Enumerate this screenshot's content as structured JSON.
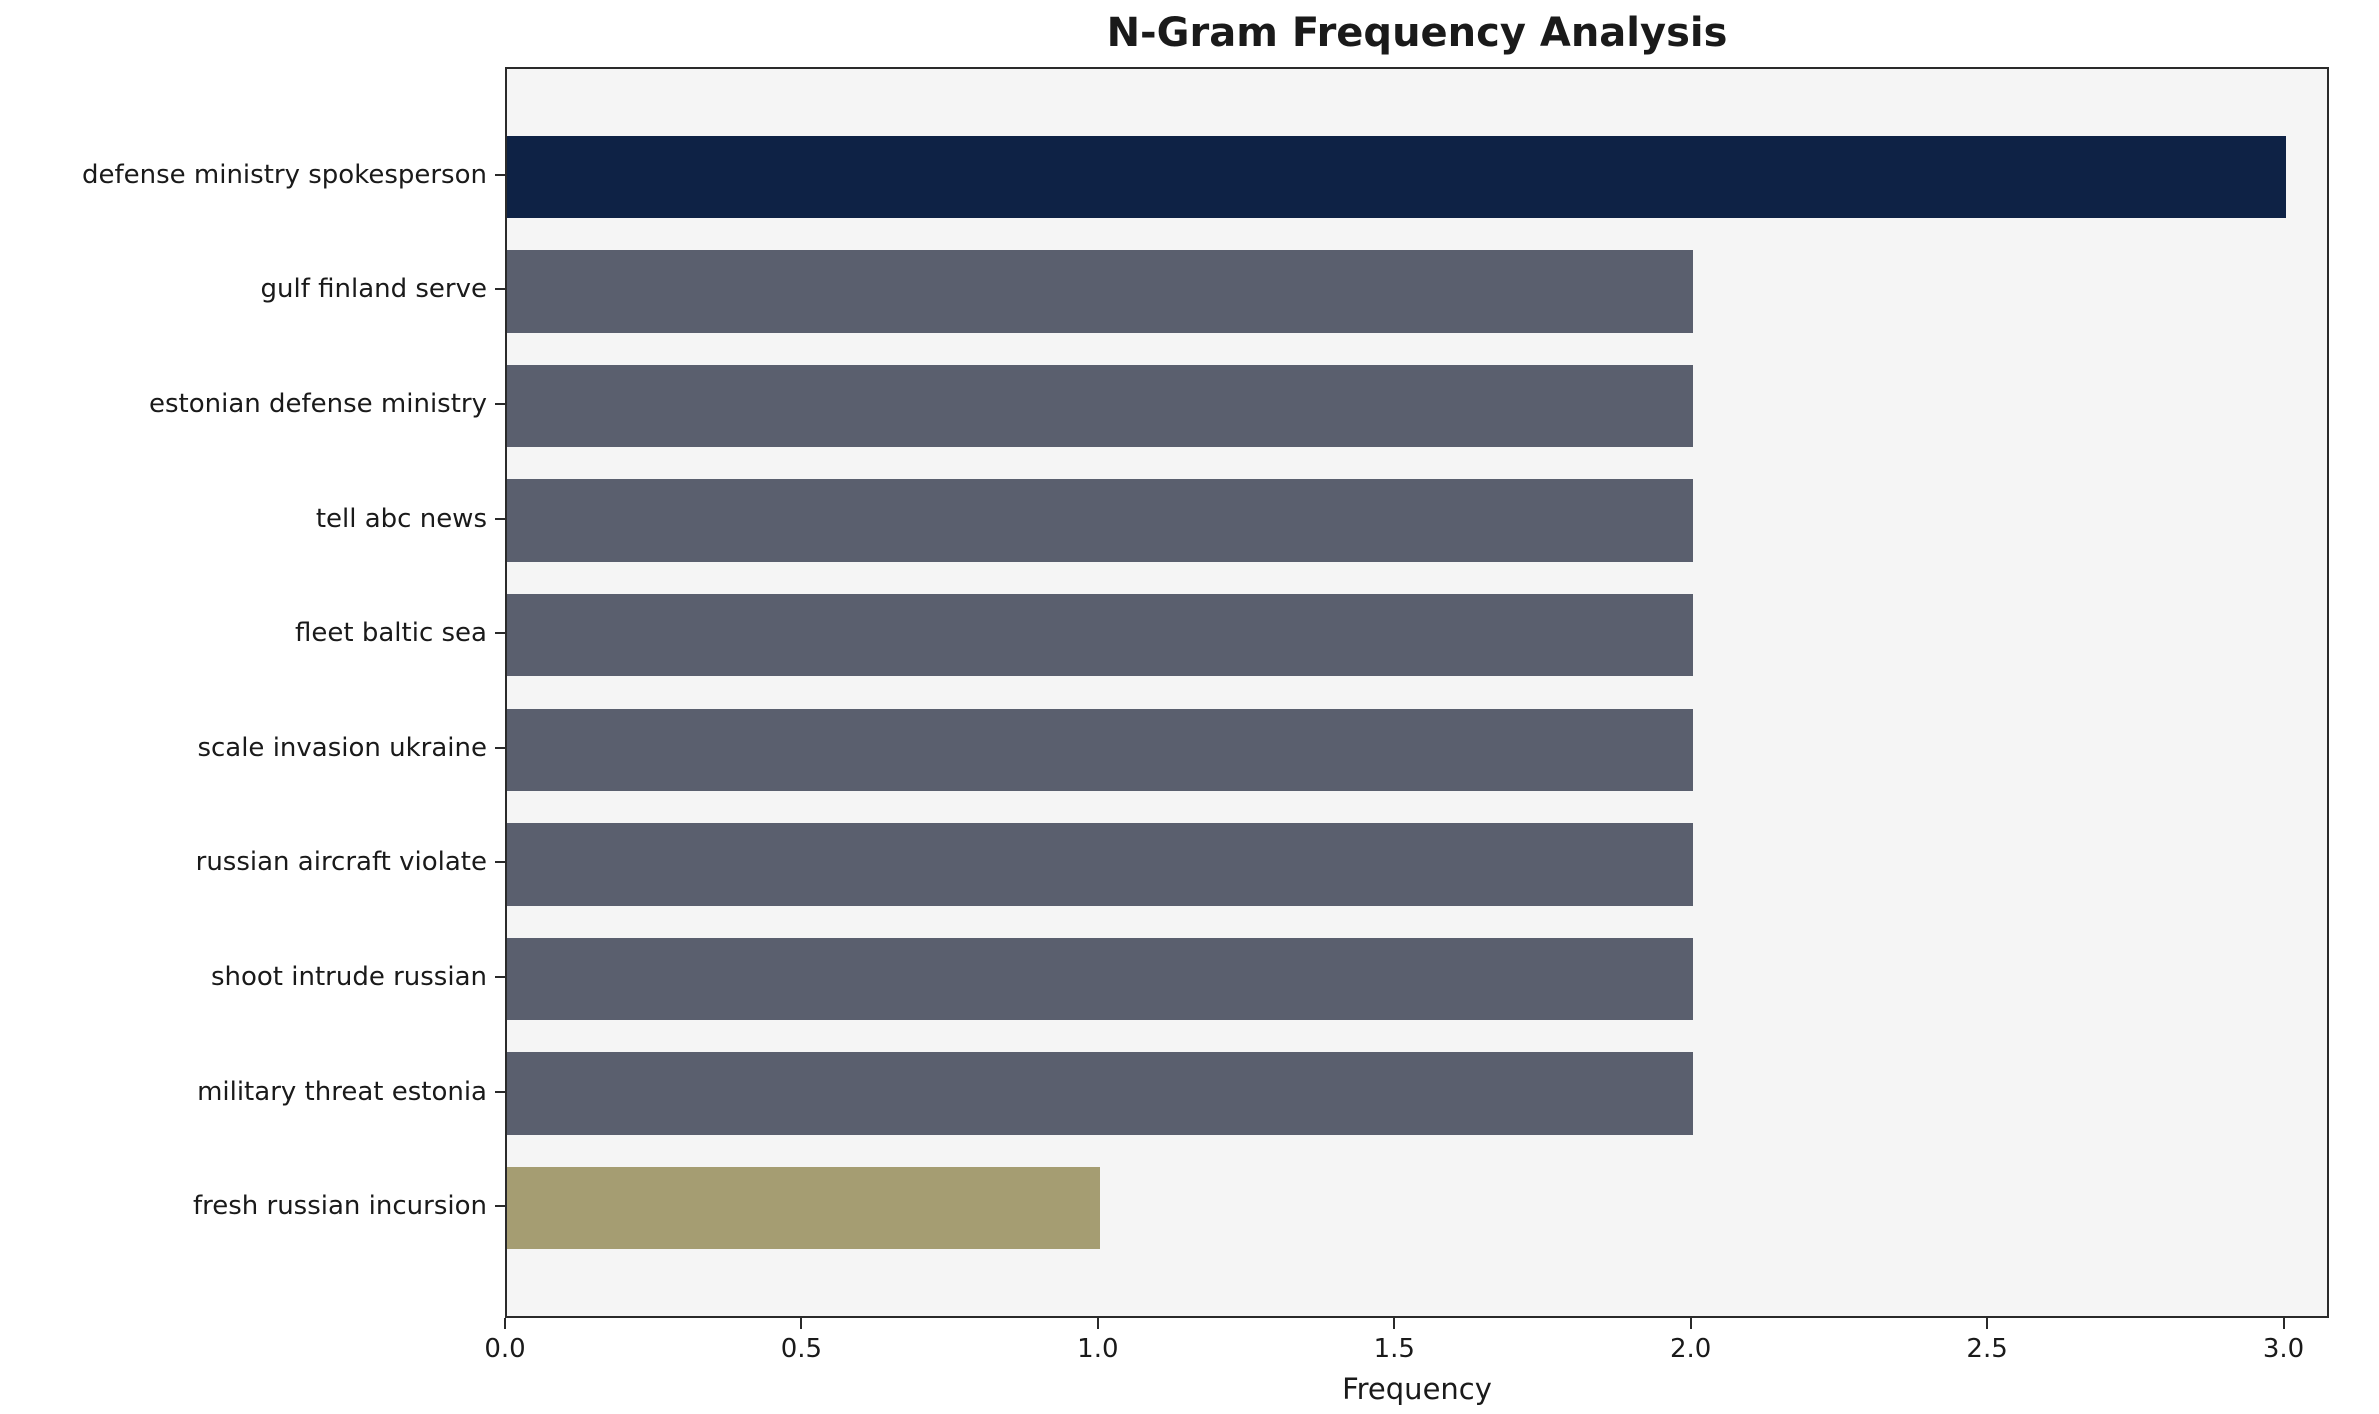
{
  "chart_data": {
    "type": "bar",
    "orientation": "horizontal",
    "title": "N-Gram Frequency Analysis",
    "xlabel": "Frequency",
    "ylabel": "",
    "categories": [
      "defense ministry spokesperson",
      "gulf finland serve",
      "estonian defense ministry",
      "tell abc news",
      "fleet baltic sea",
      "scale invasion ukraine",
      "russian aircraft violate",
      "shoot intrude russian",
      "military threat estonia",
      "fresh russian incursion"
    ],
    "values": [
      3,
      2,
      2,
      2,
      2,
      2,
      2,
      2,
      2,
      1
    ],
    "bar_colors": [
      "#0e2245",
      "#5a5f6e",
      "#5a5f6e",
      "#5a5f6e",
      "#5a5f6e",
      "#5a5f6e",
      "#5a5f6e",
      "#5a5f6e",
      "#5a5f6e",
      "#a59d72"
    ],
    "xlim": [
      0,
      3.07
    ],
    "xticks": [
      "0.0",
      "0.5",
      "1.0",
      "1.5",
      "2.0",
      "2.5",
      "3.0"
    ],
    "xtick_values": [
      0,
      0.5,
      1.0,
      1.5,
      2.0,
      2.5,
      3.0
    ],
    "plot_background": "#f5f5f5",
    "grid": false,
    "legend": false
  }
}
